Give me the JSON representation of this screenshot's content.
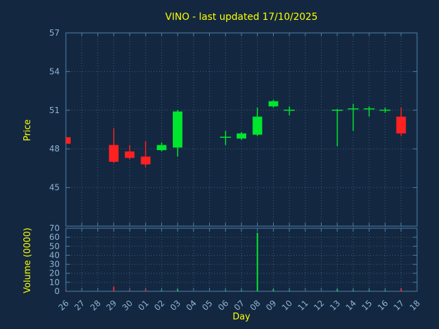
{
  "colors": {
    "background": "#132840",
    "frame": "#4f7fae",
    "grid": "#3e5d82",
    "tick_text": "#8fb3d6",
    "label_text": "#ffff00",
    "up": "#00e52e",
    "down": "#ff2121"
  },
  "chart_data": {
    "type": "candlestick",
    "title": "VINO - last updated 17/10/2025",
    "xlabel": "Day",
    "price_ylabel": "Price",
    "volume_ylabel": "Volume (0000)",
    "x_labels": [
      "26",
      "27",
      "28",
      "29",
      "30",
      "01",
      "02",
      "03",
      "04",
      "05",
      "06",
      "07",
      "08",
      "09",
      "10",
      "11",
      "12",
      "13",
      "14",
      "15",
      "16",
      "17",
      "18"
    ],
    "price_ticks": [
      45,
      48,
      51,
      54,
      57
    ],
    "price_ylim": [
      42,
      57
    ],
    "volume_ticks": [
      0,
      10,
      20,
      30,
      40,
      50,
      60,
      70
    ],
    "volume_ylim": [
      0,
      70
    ],
    "grid": "dotted",
    "candles": [
      {
        "day": "26",
        "open": 48.9,
        "high": 49.0,
        "low": 48.4,
        "close": 48.4,
        "volume": 1
      },
      {
        "day": "29",
        "open": 48.3,
        "high": 49.6,
        "low": 46.9,
        "close": 47.0,
        "volume": 5
      },
      {
        "day": "30",
        "open": 47.8,
        "high": 48.3,
        "low": 47.2,
        "close": 47.3,
        "volume": 1
      },
      {
        "day": "01",
        "open": 47.4,
        "high": 48.6,
        "low": 46.6,
        "close": 46.8,
        "volume": 2
      },
      {
        "day": "02",
        "open": 47.9,
        "high": 48.5,
        "low": 47.8,
        "close": 48.3,
        "volume": 1
      },
      {
        "day": "03",
        "open": 48.1,
        "high": 51.0,
        "low": 47.4,
        "close": 50.9,
        "volume": 2
      },
      {
        "day": "06",
        "open": 48.8,
        "high": 49.4,
        "low": 48.3,
        "close": 48.9,
        "volume": 1
      },
      {
        "day": "07",
        "open": 48.8,
        "high": 49.3,
        "low": 48.7,
        "close": 49.2,
        "volume": 1
      },
      {
        "day": "08",
        "open": 49.1,
        "high": 51.2,
        "low": 49.0,
        "close": 50.5,
        "volume": 65
      },
      {
        "day": "09",
        "open": 51.3,
        "high": 51.8,
        "low": 51.2,
        "close": 51.7,
        "volume": 2
      },
      {
        "day": "10",
        "open": 51.0,
        "high": 51.3,
        "low": 50.6,
        "close": 51.0,
        "volume": 1
      },
      {
        "day": "13",
        "open": 51.0,
        "high": 51.1,
        "low": 48.2,
        "close": 51.0,
        "volume": 2
      },
      {
        "day": "14",
        "open": 51.0,
        "high": 51.5,
        "low": 49.4,
        "close": 51.1,
        "volume": 1
      },
      {
        "day": "15",
        "open": 51.0,
        "high": 51.3,
        "low": 50.5,
        "close": 51.1,
        "volume": 1
      },
      {
        "day": "16",
        "open": 51.0,
        "high": 51.2,
        "low": 50.8,
        "close": 51.0,
        "volume": 1
      },
      {
        "day": "17",
        "open": 50.5,
        "high": 51.2,
        "low": 49.0,
        "close": 49.2,
        "volume": 3
      }
    ]
  }
}
